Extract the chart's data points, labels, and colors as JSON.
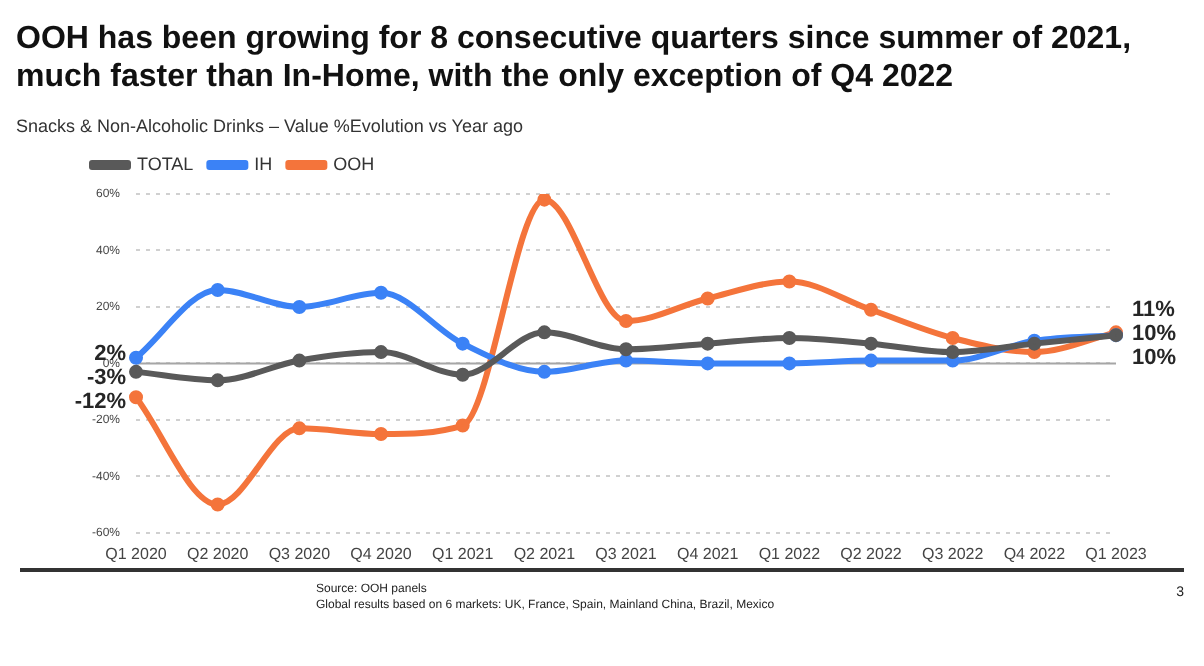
{
  "chart_data": {
    "type": "line",
    "title": "OOH has been growing for 8 consecutive quarters since summer of 2021, much faster than In-Home, with the only exception of Q4 2022",
    "subtitle": "Snacks & Non-Alcoholic Drinks – Value %Evolution vs Year ago",
    "categories": [
      "Q1 2020",
      "Q2 2020",
      "Q3 2020",
      "Q4 2020",
      "Q1 2021",
      "Q2 2021",
      "Q3 2021",
      "Q4 2021",
      "Q1 2022",
      "Q2 2022",
      "Q3 2022",
      "Q4 2022",
      "Q1 2023"
    ],
    "series": [
      {
        "name": "OOH",
        "color": "#f4743b",
        "values": [
          -12,
          -50,
          -23,
          -25,
          -22,
          58,
          15,
          23,
          29,
          19,
          9,
          4,
          11
        ],
        "value_labels": [
          "-12%",
          null,
          null,
          null,
          null,
          null,
          null,
          null,
          null,
          null,
          null,
          null,
          "11%"
        ]
      },
      {
        "name": "IH",
        "color": "#3b82f6",
        "values": [
          2,
          26,
          20,
          25,
          7,
          -3,
          1,
          0,
          0,
          1,
          1,
          8,
          10
        ],
        "value_labels": [
          "2%",
          null,
          null,
          null,
          null,
          null,
          null,
          null,
          null,
          null,
          null,
          null,
          "10%"
        ]
      },
      {
        "name": "TOTAL",
        "color": "#595959",
        "values": [
          -3,
          -6,
          1,
          4,
          -4,
          11,
          5,
          7,
          9,
          7,
          4,
          7,
          10
        ],
        "value_labels": [
          "-3%",
          null,
          null,
          null,
          null,
          null,
          null,
          null,
          null,
          null,
          null,
          null,
          "10%"
        ]
      }
    ],
    "ylim": [
      -60,
      60
    ],
    "yticks": [
      {
        "value": -60,
        "label": "-60%"
      },
      {
        "value": -40,
        "label": "-40%"
      },
      {
        "value": -20,
        "label": "-20%"
      },
      {
        "value": 0,
        "label": "0%"
      },
      {
        "value": 20,
        "label": "20%"
      },
      {
        "value": 40,
        "label": "40%"
      },
      {
        "value": 60,
        "label": "60%"
      }
    ],
    "grid": "y",
    "legend": "top left",
    "marker": "circle",
    "line_style": "solid",
    "ref_lines": [
      {
        "axis": "y",
        "value": 0,
        "color": "#a6a6a6"
      }
    ],
    "annotations": [
      "Source: OOH panels",
      "Global results based on 6 markets: UK, France, Spain, Mainland China, Brazil, Mexico",
      "3"
    ]
  }
}
